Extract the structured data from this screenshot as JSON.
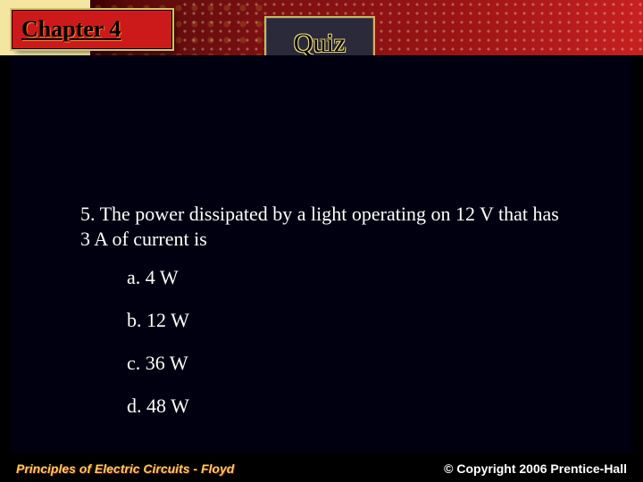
{
  "header": {
    "chapter_label": "Chapter 4",
    "slide_title": "Quiz"
  },
  "colors": {
    "background": "#000000",
    "chapter_box_bg": "#cc1a1a",
    "chapter_box_border": "#d4c26a",
    "quiz_box_bg": "#2a2a3a",
    "quiz_box_border": "#c8b860",
    "band_gradient_start": "#f2e6a0",
    "band_gradient_end": "#c82020",
    "text_color": "#ffffff",
    "footer_left_color": "#f0d060"
  },
  "typography": {
    "body_font": "Times New Roman",
    "footer_font": "Arial",
    "chapter_fontsize": 26,
    "quiz_fontsize": 30,
    "question_fontsize": 22,
    "answer_fontsize": 22,
    "footer_fontsize": 14
  },
  "question": {
    "number": "5",
    "text": "5. The power dissipated by a light operating on 12 V that has 3 A of current is",
    "answers": [
      {
        "key": "a",
        "label": "a. 4 W"
      },
      {
        "key": "b",
        "label": "b. 12 W"
      },
      {
        "key": "c",
        "label": "c. 36 W"
      },
      {
        "key": "d",
        "label": "d. 48 W"
      }
    ]
  },
  "footer": {
    "left": "Principles of Electric Circuits - Floyd",
    "right": "© Copyright 2006 Prentice-Hall"
  }
}
